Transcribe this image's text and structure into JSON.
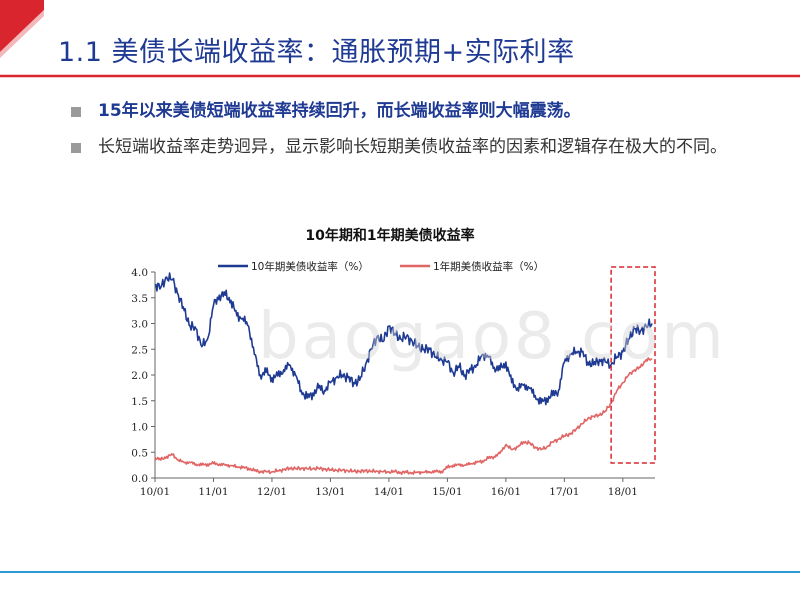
{
  "slide": {
    "title": "1.1 美债长端收益率：通胀预期+实际利率",
    "bullets": [
      "15年以来美债短端收益率持续回升，而长端收益率则大幅震荡。",
      "长短端收益率走势迥异，显示影响长短期美债收益率的因素和逻辑存在极大的不同。"
    ],
    "watermark": "baogao8.com"
  },
  "colors": {
    "title": "#1f3a93",
    "accent_red": "#d9262e",
    "series_10y": "#1f3a93",
    "series_1y": "#e06666",
    "highlight_box": "#d9262e",
    "bottom_line": "#2e9bd6"
  },
  "chart_data": {
    "type": "line",
    "title": "10年期和1年期美债收益率",
    "xlabel": "",
    "ylabel": "",
    "ylim": [
      0,
      4
    ],
    "yticks": [
      "0.0",
      "0.5",
      "1.0",
      "1.5",
      "2.0",
      "2.5",
      "3.0",
      "3.5",
      "4.0"
    ],
    "xticks": [
      "10/01",
      "11/01",
      "12/01",
      "13/01",
      "14/01",
      "15/01",
      "16/01",
      "17/01",
      "18/01"
    ],
    "x_range": [
      2010.0,
      2018.55
    ],
    "grid": false,
    "legend": "top",
    "highlight": {
      "x_range": [
        2017.8,
        2018.55
      ],
      "style": "dashed-box"
    },
    "series": [
      {
        "name": "10年期美债收益率（%）",
        "x": [
          2010.0,
          2010.1,
          2010.2,
          2010.3,
          2010.4,
          2010.5,
          2010.6,
          2010.7,
          2010.8,
          2010.9,
          2011.0,
          2011.1,
          2011.2,
          2011.3,
          2011.4,
          2011.5,
          2011.6,
          2011.7,
          2011.8,
          2011.9,
          2012.0,
          2012.1,
          2012.2,
          2012.3,
          2012.4,
          2012.5,
          2012.6,
          2012.7,
          2012.8,
          2012.9,
          2013.0,
          2013.1,
          2013.2,
          2013.3,
          2013.4,
          2013.5,
          2013.6,
          2013.7,
          2013.8,
          2013.9,
          2014.0,
          2014.1,
          2014.2,
          2014.3,
          2014.4,
          2014.5,
          2014.6,
          2014.7,
          2014.8,
          2014.9,
          2015.0,
          2015.1,
          2015.2,
          2015.3,
          2015.4,
          2015.5,
          2015.6,
          2015.7,
          2015.8,
          2015.9,
          2016.0,
          2016.1,
          2016.2,
          2016.3,
          2016.4,
          2016.5,
          2016.6,
          2016.7,
          2016.8,
          2016.9,
          2017.0,
          2017.1,
          2017.2,
          2017.3,
          2017.4,
          2017.5,
          2017.6,
          2017.7,
          2017.8,
          2017.9,
          2018.0,
          2018.1,
          2018.2,
          2018.3,
          2018.4,
          2018.5
        ],
        "values": [
          3.75,
          3.7,
          3.9,
          3.85,
          3.55,
          3.25,
          2.95,
          2.9,
          2.55,
          2.7,
          3.35,
          3.55,
          3.55,
          3.45,
          3.15,
          3.1,
          2.95,
          2.4,
          2.0,
          2.05,
          1.95,
          1.98,
          2.1,
          2.2,
          2.0,
          1.7,
          1.55,
          1.65,
          1.75,
          1.7,
          1.85,
          1.95,
          2.0,
          1.95,
          1.85,
          1.9,
          2.2,
          2.5,
          2.75,
          2.65,
          2.95,
          2.8,
          2.7,
          2.75,
          2.65,
          2.55,
          2.5,
          2.5,
          2.35,
          2.3,
          2.25,
          2.05,
          2.15,
          2.0,
          2.1,
          2.2,
          2.4,
          2.35,
          2.15,
          2.1,
          2.25,
          1.85,
          1.75,
          1.8,
          1.75,
          1.6,
          1.45,
          1.55,
          1.6,
          1.7,
          2.25,
          2.4,
          2.45,
          2.45,
          2.25,
          2.2,
          2.3,
          2.25,
          2.2,
          2.35,
          2.45,
          2.7,
          2.9,
          2.85,
          2.95,
          3.0
        ]
      },
      {
        "name": "1年期美债收益率（%）",
        "x": [
          2010.0,
          2010.1,
          2010.2,
          2010.3,
          2010.4,
          2010.5,
          2010.6,
          2010.7,
          2010.8,
          2010.9,
          2011.0,
          2011.1,
          2011.2,
          2011.3,
          2011.4,
          2011.5,
          2011.6,
          2011.7,
          2011.8,
          2011.9,
          2012.0,
          2012.1,
          2012.2,
          2012.3,
          2012.4,
          2012.5,
          2012.6,
          2012.7,
          2012.8,
          2012.9,
          2013.0,
          2013.1,
          2013.2,
          2013.3,
          2013.4,
          2013.5,
          2013.6,
          2013.7,
          2013.8,
          2013.9,
          2014.0,
          2014.1,
          2014.2,
          2014.3,
          2014.4,
          2014.5,
          2014.6,
          2014.7,
          2014.8,
          2014.9,
          2015.0,
          2015.1,
          2015.2,
          2015.3,
          2015.4,
          2015.5,
          2015.6,
          2015.7,
          2015.8,
          2015.9,
          2016.0,
          2016.1,
          2016.2,
          2016.3,
          2016.4,
          2016.5,
          2016.6,
          2016.7,
          2016.8,
          2016.9,
          2017.0,
          2017.1,
          2017.2,
          2017.3,
          2017.4,
          2017.5,
          2017.6,
          2017.7,
          2017.8,
          2017.9,
          2018.0,
          2018.1,
          2018.2,
          2018.3,
          2018.4,
          2018.5
        ],
        "values": [
          0.4,
          0.35,
          0.42,
          0.45,
          0.35,
          0.3,
          0.3,
          0.27,
          0.25,
          0.27,
          0.28,
          0.27,
          0.25,
          0.24,
          0.22,
          0.2,
          0.19,
          0.14,
          0.13,
          0.12,
          0.12,
          0.14,
          0.16,
          0.19,
          0.18,
          0.19,
          0.18,
          0.18,
          0.19,
          0.17,
          0.16,
          0.15,
          0.15,
          0.14,
          0.13,
          0.13,
          0.14,
          0.13,
          0.13,
          0.12,
          0.12,
          0.12,
          0.11,
          0.11,
          0.1,
          0.11,
          0.11,
          0.12,
          0.12,
          0.13,
          0.2,
          0.25,
          0.25,
          0.25,
          0.28,
          0.3,
          0.33,
          0.38,
          0.42,
          0.48,
          0.65,
          0.55,
          0.6,
          0.7,
          0.68,
          0.6,
          0.55,
          0.6,
          0.7,
          0.75,
          0.82,
          0.85,
          0.95,
          1.05,
          1.15,
          1.2,
          1.22,
          1.3,
          1.45,
          1.7,
          1.85,
          2.0,
          2.1,
          2.15,
          2.3,
          2.3
        ]
      }
    ]
  }
}
